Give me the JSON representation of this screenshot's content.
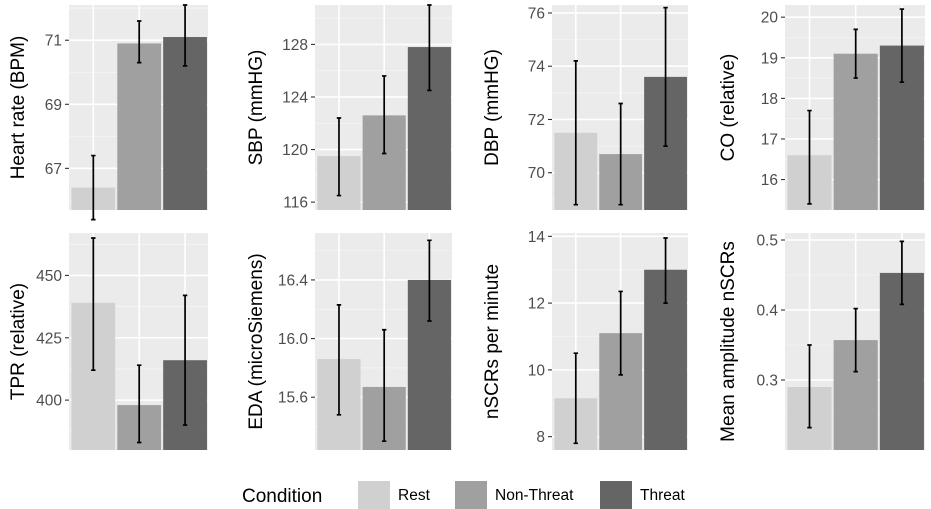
{
  "chart_data": {
    "type": "bar",
    "layout": "facet-grid-2x4",
    "legend": {
      "title": "Condition",
      "position": "bottom",
      "entries": [
        {
          "label": "Rest",
          "color": "#d0d0d0"
        },
        {
          "label": "Non-Threat",
          "color": "#a0a0a0"
        },
        {
          "label": "Threat",
          "color": "#656565"
        }
      ]
    },
    "panels": [
      {
        "ylabel": "Heart rate (BPM)",
        "ylim": [
          65.7,
          72.1
        ],
        "ticks": [
          67,
          69,
          71
        ],
        "values": [
          66.4,
          70.9,
          71.1
        ],
        "err_low": [
          65.4,
          70.3,
          70.2
        ],
        "err_high": [
          67.4,
          71.6,
          72.1
        ]
      },
      {
        "ylabel": "SBP (mmHG)",
        "ylim": [
          115.4,
          131.0
        ],
        "ticks": [
          116,
          120,
          124,
          128
        ],
        "values": [
          119.5,
          122.6,
          127.8
        ],
        "err_low": [
          116.5,
          119.7,
          124.5
        ],
        "err_high": [
          122.4,
          125.6,
          131.0
        ]
      },
      {
        "ylabel": "DBP (mmHG)",
        "ylim": [
          68.6,
          76.3
        ],
        "ticks": [
          70,
          72,
          74,
          76
        ],
        "values": [
          71.5,
          70.7,
          73.6
        ],
        "err_low": [
          68.8,
          68.8,
          71.0
        ],
        "err_high": [
          74.2,
          72.6,
          76.2
        ]
      },
      {
        "ylabel": "CO (relative)",
        "ylim": [
          15.25,
          20.3
        ],
        "ticks": [
          16,
          17,
          18,
          19,
          20
        ],
        "values": [
          16.6,
          19.1,
          19.3
        ],
        "err_low": [
          15.4,
          18.5,
          18.4
        ],
        "err_high": [
          17.7,
          19.7,
          20.2
        ]
      },
      {
        "ylabel": "TPR (relative)",
        "ylim": [
          380,
          467
        ],
        "ticks": [
          400,
          425,
          450
        ],
        "values": [
          439,
          398,
          416
        ],
        "err_low": [
          412,
          383,
          390
        ],
        "err_high": [
          465,
          414,
          442
        ]
      },
      {
        "ylabel": "EDA (microSiemens)",
        "ylim": [
          15.24,
          16.72
        ],
        "ticks": [
          15.6,
          16.0,
          16.4
        ],
        "values": [
          15.86,
          15.67,
          16.4
        ],
        "err_low": [
          15.48,
          15.3,
          16.12
        ],
        "err_high": [
          16.23,
          16.06,
          16.67
        ]
      },
      {
        "ylabel": "nSCRs per minute",
        "ylim": [
          7.6,
          14.1
        ],
        "ticks": [
          8,
          10,
          12,
          14
        ],
        "values": [
          9.15,
          11.1,
          13.0
        ],
        "err_low": [
          7.8,
          9.85,
          12.0
        ],
        "err_high": [
          10.5,
          12.35,
          13.95
        ]
      },
      {
        "ylabel": "Mean amplitude nSCRs",
        "ylim": [
          0.2,
          0.51
        ],
        "ticks": [
          0.3,
          0.4,
          0.5
        ],
        "values": [
          0.29,
          0.357,
          0.453
        ],
        "err_low": [
          0.232,
          0.312,
          0.408
        ],
        "err_high": [
          0.35,
          0.402,
          0.498
        ]
      }
    ]
  }
}
